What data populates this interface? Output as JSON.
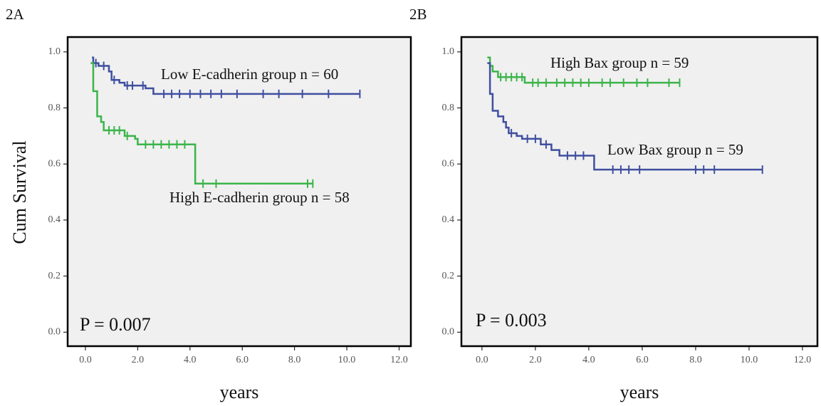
{
  "chart_data": [
    {
      "type": "line",
      "panel_label": "2A",
      "ylabel": "Cum Survival",
      "xlabel": "years",
      "annotation": "P = 0.007",
      "xlim": [
        -0.68,
        12.45
      ],
      "ylim": [
        -0.05,
        1.053
      ],
      "xticks": [
        {
          "value": 0,
          "label": "0.0"
        },
        {
          "value": 2,
          "label": "2.0"
        },
        {
          "value": 4,
          "label": "4.0"
        },
        {
          "value": 6,
          "label": "6.0"
        },
        {
          "value": 8,
          "label": "8.0"
        },
        {
          "value": 10,
          "label": "10.0"
        },
        {
          "value": 12,
          "label": "12.0"
        }
      ],
      "yticks": [
        {
          "value": 0,
          "label": "0.0"
        },
        {
          "value": 0.2,
          "label": "0.2"
        },
        {
          "value": 0.4,
          "label": "0.4"
        },
        {
          "value": 0.6,
          "label": "0.6"
        },
        {
          "value": 0.8,
          "label": "0.8"
        },
        {
          "value": 1,
          "label": "1.0"
        }
      ],
      "series": [
        {
          "name": "Low E-cadherin group  n = 60",
          "color": "#3f4fa0",
          "x": [
            0.25,
            0.3,
            0.5,
            0.9,
            1.0,
            1.3,
            1.5,
            2.3,
            2.6,
            10.5
          ],
          "values": [
            0.98,
            0.96,
            0.95,
            0.93,
            0.9,
            0.89,
            0.88,
            0.87,
            0.85,
            0.85
          ],
          "censor_x": [
            0.4,
            0.7,
            1.1,
            1.6,
            1.8,
            2.2,
            3.0,
            3.3,
            3.6,
            4.0,
            4.4,
            4.8,
            5.2,
            5.8,
            6.8,
            7.4,
            8.3,
            9.3,
            10.5
          ]
        },
        {
          "name": "High E-cadherin group  n = 58",
          "color": "#3bb54a",
          "x": [
            0.2,
            0.3,
            0.45,
            0.6,
            0.7,
            1.5,
            1.9,
            2.0,
            4.2,
            8.7
          ],
          "values": [
            0.96,
            0.86,
            0.77,
            0.75,
            0.72,
            0.7,
            0.69,
            0.67,
            0.53,
            0.53
          ],
          "censor_x": [
            0.9,
            1.1,
            1.3,
            1.6,
            2.3,
            2.6,
            2.9,
            3.2,
            3.5,
            3.8,
            4.5,
            5.0,
            8.5,
            8.7
          ]
        }
      ]
    },
    {
      "type": "line",
      "panel_label": "2B",
      "xlabel": "years",
      "annotation": "P = 0.003",
      "xlim": [
        -0.77,
        12.56
      ],
      "ylim": [
        -0.05,
        1.053
      ],
      "xticks": [
        {
          "value": 0,
          "label": "0.0"
        },
        {
          "value": 2,
          "label": "2.0"
        },
        {
          "value": 4,
          "label": "4.0"
        },
        {
          "value": 6,
          "label": "6.0"
        },
        {
          "value": 8,
          "label": "8.0"
        },
        {
          "value": 10,
          "label": "10.0"
        },
        {
          "value": 12,
          "label": "12.0"
        }
      ],
      "yticks": [
        {
          "value": 0,
          "label": "0.0"
        },
        {
          "value": 0.2,
          "label": "0.2"
        },
        {
          "value": 0.4,
          "label": "0.4"
        },
        {
          "value": 0.6,
          "label": "0.6"
        },
        {
          "value": 0.8,
          "label": "0.8"
        },
        {
          "value": 1,
          "label": "1.0"
        }
      ],
      "series": [
        {
          "name": "High Bax group  n = 59",
          "color": "#3bb54a",
          "x": [
            0.2,
            0.3,
            0.4,
            0.6,
            1.6,
            7.4
          ],
          "values": [
            0.98,
            0.95,
            0.93,
            0.91,
            0.89,
            0.89
          ],
          "censor_x": [
            0.7,
            0.9,
            1.1,
            1.3,
            1.5,
            1.9,
            2.1,
            2.4,
            2.8,
            3.1,
            3.4,
            3.7,
            4.0,
            4.5,
            4.8,
            5.3,
            5.8,
            6.2,
            7.0,
            7.4
          ]
        },
        {
          "name": "Low Bax group  n = 59",
          "color": "#3f4fa0",
          "x": [
            0.2,
            0.3,
            0.4,
            0.6,
            0.8,
            0.9,
            1.0,
            1.3,
            1.5,
            2.2,
            2.6,
            2.9,
            4.2,
            10.5
          ],
          "values": [
            0.96,
            0.85,
            0.79,
            0.77,
            0.75,
            0.73,
            0.71,
            0.7,
            0.69,
            0.67,
            0.65,
            0.63,
            0.58,
            0.58
          ],
          "censor_x": [
            1.1,
            1.7,
            2.0,
            2.4,
            3.2,
            3.5,
            3.8,
            4.9,
            5.2,
            5.5,
            5.9,
            8.0,
            8.3,
            8.7,
            10.5
          ]
        }
      ]
    }
  ]
}
